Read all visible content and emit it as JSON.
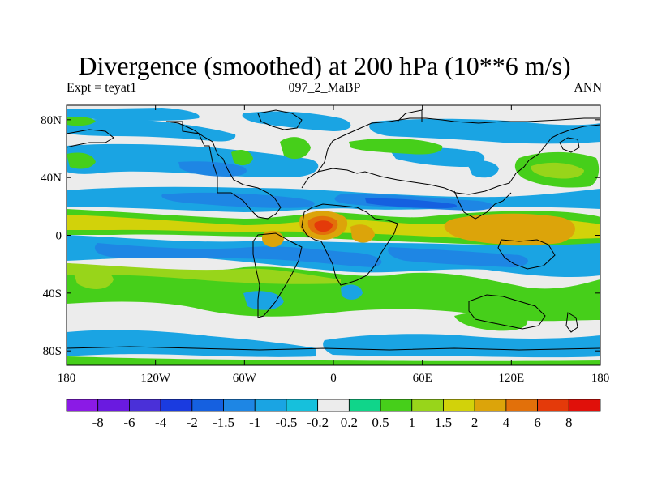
{
  "chart_data": {
    "type": "heatmap",
    "title": "Divergence (smoothed) at 200 hPa (10**6 m/s)",
    "subtitle_left": "Expt = teyat1",
    "subtitle_center": "097_2_MaBP",
    "subtitle_right": "ANN",
    "x_range": [
      -180,
      180
    ],
    "y_range": [
      -90,
      90
    ],
    "x_ticks": [
      {
        "value": -180,
        "label": "180"
      },
      {
        "value": -120,
        "label": "120W"
      },
      {
        "value": -60,
        "label": "60W"
      },
      {
        "value": 0,
        "label": "0"
      },
      {
        "value": 60,
        "label": "60E"
      },
      {
        "value": 120,
        "label": "120E"
      },
      {
        "value": 180,
        "label": "180"
      }
    ],
    "y_ticks": [
      {
        "value": 80,
        "label": "80N"
      },
      {
        "value": 40,
        "label": "40N"
      },
      {
        "value": 0,
        "label": "0"
      },
      {
        "value": -40,
        "label": "40S"
      },
      {
        "value": -80,
        "label": "80S"
      }
    ],
    "contour_levels": [
      "-8",
      "-6",
      "-4",
      "-2",
      "-1.5",
      "-1",
      "-0.5",
      "-0.2",
      "0.2",
      "0.5",
      "1",
      "1.5",
      "2",
      "4",
      "6",
      "8"
    ],
    "colors": [
      "#8b1ae6",
      "#6a1ae0",
      "#4a30d8",
      "#1a3be0",
      "#1560e0",
      "#1e86e4",
      "#1aa4e3",
      "#16c0dc",
      "#ececec",
      "#10d58a",
      "#46cf1a",
      "#98d51a",
      "#d2d20a",
      "#dca40a",
      "#e2700a",
      "#e43a0a",
      "#e0100a"
    ],
    "regions": [
      {
        "name": "tropical-divergence-band",
        "lat": 4,
        "lon_from": -180,
        "lon_to": 180,
        "value": 1.5
      },
      {
        "name": "west-pacific-max",
        "lat": 0,
        "lon": 125,
        "value": 4
      },
      {
        "name": "africa-max",
        "lat": 2,
        "lon": -5,
        "value": 6
      },
      {
        "name": "subtropical-convergence-north",
        "lat": 25,
        "lon_from": -180,
        "lon_to": 180,
        "value": -1
      },
      {
        "name": "southern-convergence-band",
        "lat": -15,
        "lon_from": -180,
        "lon_to": 180,
        "value": -1.5
      },
      {
        "name": "southern-divergence-band",
        "lat": -40,
        "lon_from": -180,
        "lon_to": 180,
        "value": 1
      },
      {
        "name": "antarctic-convergence",
        "lat": -75,
        "lon_from": -180,
        "lon_to": 180,
        "value": -0.5
      }
    ]
  }
}
